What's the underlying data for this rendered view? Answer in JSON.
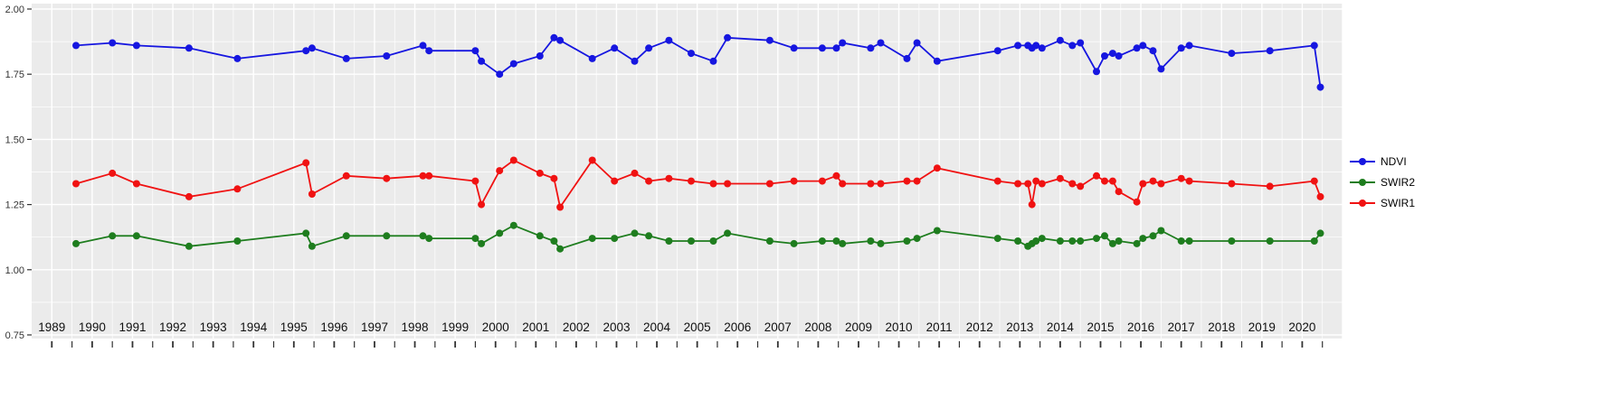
{
  "chart": {
    "panel_background": "#ebebeb",
    "gridline_color": "#ffffff",
    "axis_tick_color": "#333333",
    "x_axis_text_color": "#111111",
    "y_axis_text_color": "#333333",
    "y_tick_labels": [
      "2.00",
      "1.75",
      "1.50",
      "1.25",
      "1.00",
      "0.75"
    ],
    "y_tick_values": [
      2.0,
      1.75,
      1.5,
      1.25,
      1.0,
      0.75
    ]
  },
  "chart_data": {
    "type": "line",
    "title": "",
    "xlabel": "",
    "ylabel": "",
    "grid": true,
    "legend_position": "right",
    "xlim": [
      1988.5,
      2021
    ],
    "ylim": [
      0.75,
      2.0
    ],
    "x_tick_labels": [
      "1989",
      "1990",
      "1991",
      "1992",
      "1993",
      "1994",
      "1995",
      "1996",
      "1997",
      "1998",
      "1999",
      "2000",
      "2001",
      "2002",
      "2003",
      "2004",
      "2005",
      "2006",
      "2007",
      "2008",
      "2009",
      "2010",
      "2011",
      "2012",
      "2013",
      "2014",
      "2015",
      "2016",
      "2017",
      "2018",
      "2019",
      "2020"
    ],
    "x": [
      1989.6,
      1990.5,
      1991.1,
      1992.4,
      1993.6,
      1995.3,
      1995.45,
      1996.3,
      1997.3,
      1998.2,
      1998.35,
      1999.5,
      1999.65,
      2000.1,
      2000.45,
      2001.1,
      2001.45,
      2001.6,
      2002.4,
      2002.95,
      2003.45,
      2003.8,
      2004.3,
      2004.85,
      2005.4,
      2005.75,
      2006.8,
      2007.4,
      2008.1,
      2008.45,
      2008.6,
      2009.3,
      2009.55,
      2010.2,
      2010.45,
      2010.95,
      2012.45,
      2012.95,
      2013.2,
      2013.3,
      2013.4,
      2013.55,
      2014.0,
      2014.3,
      2014.5,
      2014.9,
      2015.1,
      2015.3,
      2015.45,
      2015.9,
      2016.05,
      2016.3,
      2016.5,
      2017.0,
      2017.2,
      2018.25,
      2019.2,
      2020.3,
      2020.45
    ],
    "series": [
      {
        "name": "NDVI",
        "color": "#1616e0",
        "values": [
          1.86,
          1.87,
          1.86,
          1.85,
          1.81,
          1.84,
          1.85,
          1.81,
          1.82,
          1.86,
          1.84,
          1.84,
          1.8,
          1.75,
          1.79,
          1.82,
          1.89,
          1.88,
          1.81,
          1.85,
          1.8,
          1.85,
          1.88,
          1.83,
          1.8,
          1.89,
          1.88,
          1.85,
          1.85,
          1.85,
          1.87,
          1.85,
          1.87,
          1.81,
          1.87,
          1.8,
          1.84,
          1.86,
          1.86,
          1.85,
          1.86,
          1.85,
          1.88,
          1.86,
          1.87,
          1.76,
          1.82,
          1.83,
          1.82,
          1.85,
          1.86,
          1.84,
          1.77,
          1.85,
          1.86,
          1.83,
          1.84,
          1.86,
          1.7
        ]
      },
      {
        "name": "SWIR2",
        "color": "#1e7d1e",
        "values": [
          1.1,
          1.13,
          1.13,
          1.09,
          1.11,
          1.14,
          1.09,
          1.13,
          1.13,
          1.13,
          1.12,
          1.12,
          1.1,
          1.14,
          1.17,
          1.13,
          1.11,
          1.08,
          1.12,
          1.12,
          1.14,
          1.13,
          1.11,
          1.11,
          1.11,
          1.14,
          1.11,
          1.1,
          1.11,
          1.11,
          1.1,
          1.11,
          1.1,
          1.11,
          1.12,
          1.15,
          1.12,
          1.11,
          1.09,
          1.1,
          1.11,
          1.12,
          1.11,
          1.11,
          1.11,
          1.12,
          1.13,
          1.1,
          1.11,
          1.1,
          1.12,
          1.13,
          1.15,
          1.11,
          1.11,
          1.11,
          1.11,
          1.11,
          1.14
        ]
      },
      {
        "name": "SWIR1",
        "color": "#f01212",
        "values": [
          1.33,
          1.37,
          1.33,
          1.28,
          1.31,
          1.41,
          1.29,
          1.36,
          1.35,
          1.36,
          1.36,
          1.34,
          1.25,
          1.38,
          1.42,
          1.37,
          1.35,
          1.24,
          1.42,
          1.34,
          1.37,
          1.34,
          1.35,
          1.34,
          1.33,
          1.33,
          1.33,
          1.34,
          1.34,
          1.36,
          1.33,
          1.33,
          1.33,
          1.34,
          1.34,
          1.39,
          1.34,
          1.33,
          1.33,
          1.25,
          1.34,
          1.33,
          1.35,
          1.33,
          1.32,
          1.36,
          1.34,
          1.34,
          1.3,
          1.26,
          1.33,
          1.34,
          1.33,
          1.35,
          1.34,
          1.33,
          1.32,
          1.34,
          1.28
        ]
      }
    ]
  },
  "legend": {
    "items": [
      {
        "label": "NDVI"
      },
      {
        "label": "SWIR2"
      },
      {
        "label": "SWIR1"
      }
    ]
  }
}
